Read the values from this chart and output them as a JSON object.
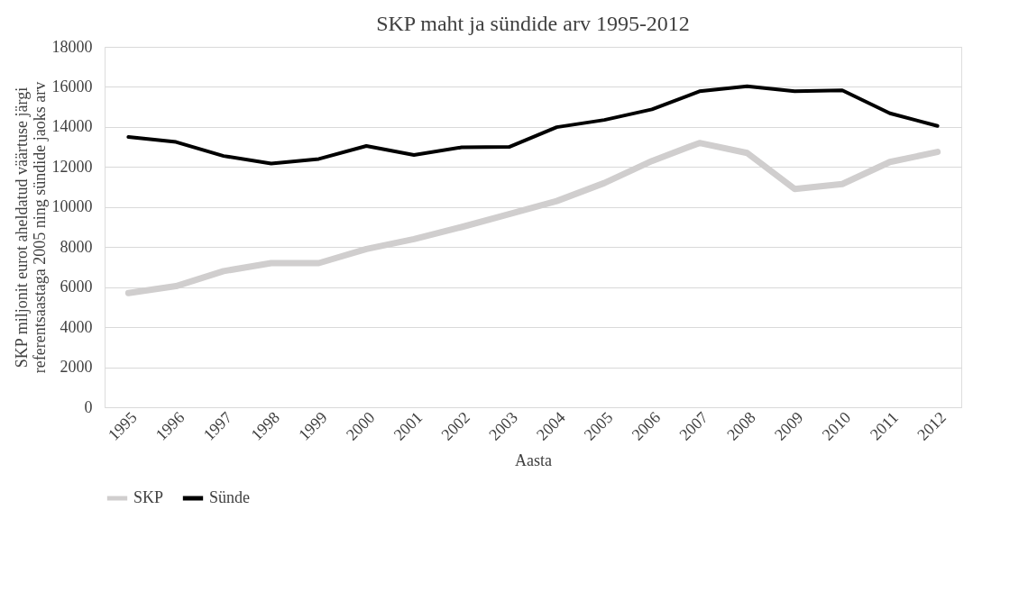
{
  "chart_data": {
    "type": "line",
    "title": "SKP maht ja sündide arv 1995-2012",
    "xlabel": "Aasta",
    "ylabel": "SKP miljonit eurot aheldatud väärtuse järgi referentsaastaga 2005 ning sündide jaoks arv",
    "categories": [
      "1995",
      "1996",
      "1997",
      "1998",
      "1999",
      "2000",
      "2001",
      "2002",
      "2003",
      "2004",
      "2005",
      "2006",
      "2007",
      "2008",
      "2009",
      "2010",
      "2011",
      "2012"
    ],
    "series": [
      {
        "name": "SKP",
        "color": "#d0cece",
        "values": [
          5700,
          6050,
          6800,
          7200,
          7200,
          7900,
          8400,
          9000,
          9650,
          10300,
          11200,
          12300,
          13200,
          12700,
          10900,
          11150,
          12250,
          12750
        ]
      },
      {
        "name": "Sünde",
        "color": "#000000",
        "values": [
          13500,
          13250,
          12550,
          12170,
          12400,
          13050,
          12600,
          12980,
          13000,
          13990,
          14350,
          14880,
          15780,
          16030,
          15780,
          15830,
          14680,
          14050
        ]
      }
    ],
    "ylim": [
      0,
      18000
    ],
    "yticks": [
      0,
      2000,
      4000,
      6000,
      8000,
      10000,
      12000,
      14000,
      16000,
      18000
    ],
    "grid": "y",
    "legend": "bottom",
    "marker": "none",
    "line_style": "solid"
  }
}
